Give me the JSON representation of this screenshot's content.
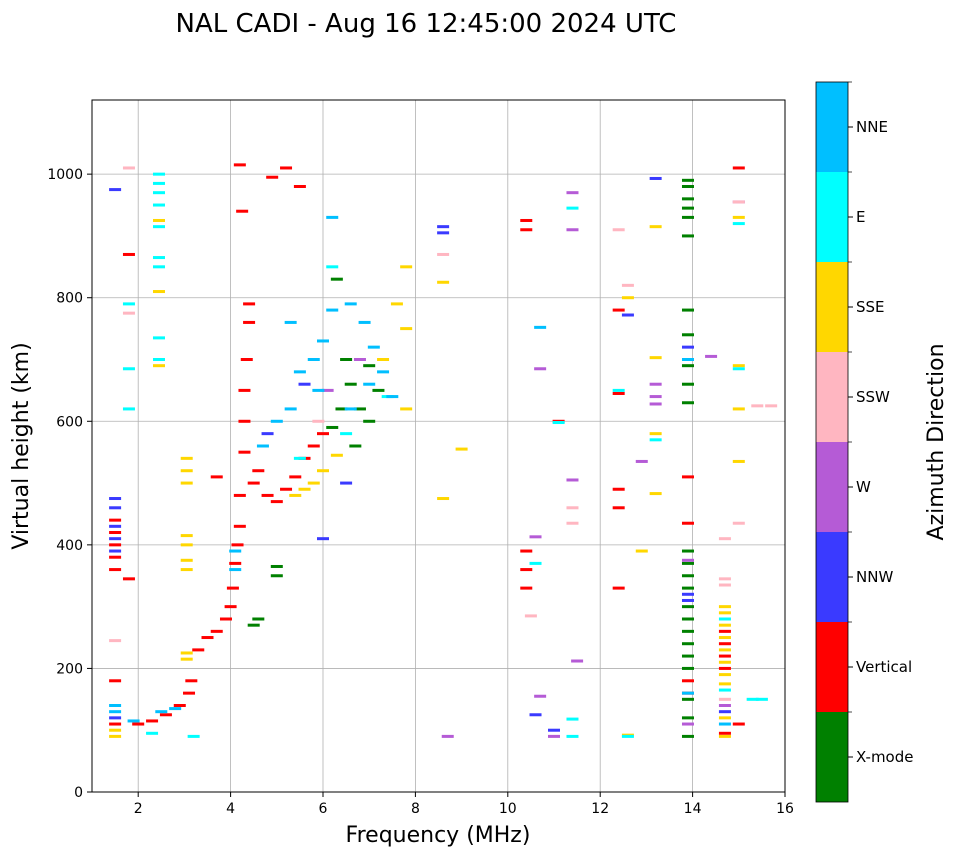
{
  "chart_data": {
    "type": "scatter",
    "title": "NAL CADI - Aug 16 12:45:00 2024 UTC",
    "xlabel": "Frequency (MHz)",
    "ylabel": "Virtual height (km)",
    "xlim": [
      1,
      16
    ],
    "ylim": [
      0,
      1120
    ],
    "xticks": [
      2,
      4,
      6,
      8,
      10,
      12,
      14,
      16
    ],
    "yticks": [
      0,
      200,
      400,
      600,
      800,
      1000
    ],
    "grid": true,
    "colorbar": {
      "title": "Azimuth Direction",
      "categories": [
        {
          "label": "X-mode",
          "color": "#008000"
        },
        {
          "label": "Vertical",
          "color": "#ff0000"
        },
        {
          "label": "NNW",
          "color": "#3a3aff"
        },
        {
          "label": "W",
          "color": "#b55bd6"
        },
        {
          "label": "SSW",
          "color": "#ffb6c1"
        },
        {
          "label": "SSE",
          "color": "#ffd700"
        },
        {
          "label": "E",
          "color": "#00ffff"
        },
        {
          "label": "NNE",
          "color": "#00bfff"
        }
      ]
    },
    "series": [
      {
        "name": "X-mode",
        "points": [
          [
            4.5,
            270
          ],
          [
            4.6,
            280
          ],
          [
            5.0,
            350
          ],
          [
            5.0,
            365
          ],
          [
            6.3,
            830
          ],
          [
            6.5,
            700
          ],
          [
            6.6,
            660
          ],
          [
            6.8,
            620
          ],
          [
            7.0,
            690
          ],
          [
            7.2,
            650
          ],
          [
            13.9,
            990
          ],
          [
            13.9,
            980
          ],
          [
            13.9,
            960
          ],
          [
            13.9,
            945
          ],
          [
            13.9,
            930
          ],
          [
            13.9,
            900
          ],
          [
            13.9,
            780
          ],
          [
            13.9,
            740
          ],
          [
            13.9,
            690
          ],
          [
            13.9,
            660
          ],
          [
            13.9,
            630
          ],
          [
            13.9,
            390
          ],
          [
            13.9,
            370
          ],
          [
            13.9,
            350
          ],
          [
            13.9,
            330
          ],
          [
            13.9,
            300
          ],
          [
            13.9,
            280
          ],
          [
            13.9,
            260
          ],
          [
            13.9,
            240
          ],
          [
            13.9,
            220
          ],
          [
            13.9,
            200
          ],
          [
            13.9,
            150
          ],
          [
            13.9,
            120
          ],
          [
            13.9,
            90
          ],
          [
            6.2,
            590
          ],
          [
            6.4,
            620
          ],
          [
            6.7,
            560
          ],
          [
            7.0,
            600
          ]
        ]
      },
      {
        "name": "Vertical",
        "points": [
          [
            1.5,
            440
          ],
          [
            1.5,
            420
          ],
          [
            1.5,
            400
          ],
          [
            1.5,
            380
          ],
          [
            1.5,
            360
          ],
          [
            1.5,
            180
          ],
          [
            1.5,
            110
          ],
          [
            2.0,
            110
          ],
          [
            2.3,
            115
          ],
          [
            2.6,
            125
          ],
          [
            2.9,
            140
          ],
          [
            3.1,
            160
          ],
          [
            3.15,
            180
          ],
          [
            3.3,
            230
          ],
          [
            3.5,
            250
          ],
          [
            3.7,
            260
          ],
          [
            3.9,
            280
          ],
          [
            4.0,
            300
          ],
          [
            4.05,
            330
          ],
          [
            4.1,
            370
          ],
          [
            4.15,
            400
          ],
          [
            4.2,
            430
          ],
          [
            4.2,
            480
          ],
          [
            4.3,
            550
          ],
          [
            4.3,
            600
          ],
          [
            4.3,
            650
          ],
          [
            4.35,
            700
          ],
          [
            4.4,
            760
          ],
          [
            4.4,
            790
          ],
          [
            4.5,
            500
          ],
          [
            4.6,
            520
          ],
          [
            4.8,
            480
          ],
          [
            5.0,
            470
          ],
          [
            5.2,
            490
          ],
          [
            5.4,
            510
          ],
          [
            5.6,
            540
          ],
          [
            5.8,
            560
          ],
          [
            6.0,
            580
          ],
          [
            4.2,
            1015
          ],
          [
            4.25,
            940
          ],
          [
            4.9,
            995
          ],
          [
            5.2,
            1010
          ],
          [
            5.5,
            980
          ],
          [
            10.4,
            910
          ],
          [
            10.4,
            925
          ],
          [
            10.4,
            390
          ],
          [
            10.4,
            360
          ],
          [
            10.4,
            330
          ],
          [
            11.1,
            600
          ],
          [
            12.4,
            780
          ],
          [
            12.4,
            645
          ],
          [
            12.4,
            490
          ],
          [
            12.4,
            460
          ],
          [
            12.4,
            330
          ],
          [
            13.9,
            510
          ],
          [
            13.9,
            435
          ],
          [
            13.9,
            180
          ],
          [
            13.9,
            160
          ],
          [
            14.7,
            260
          ],
          [
            14.7,
            240
          ],
          [
            14.7,
            220
          ],
          [
            14.7,
            200
          ],
          [
            14.7,
            95
          ],
          [
            15.0,
            1010
          ],
          [
            15.0,
            110
          ],
          [
            1.8,
            345
          ],
          [
            1.8,
            870
          ],
          [
            3.7,
            510
          ]
        ]
      },
      {
        "name": "NNW",
        "points": [
          [
            1.5,
            475
          ],
          [
            1.5,
            460
          ],
          [
            1.5,
            430
          ],
          [
            1.5,
            410
          ],
          [
            1.5,
            390
          ],
          [
            1.5,
            120
          ],
          [
            1.5,
            975
          ],
          [
            6.0,
            410
          ],
          [
            6.5,
            500
          ],
          [
            8.6,
            905
          ],
          [
            8.6,
            915
          ],
          [
            10.6,
            125
          ],
          [
            11.0,
            100
          ],
          [
            12.6,
            772
          ],
          [
            13.2,
            993
          ],
          [
            13.9,
            720
          ],
          [
            13.9,
            320
          ],
          [
            13.9,
            310
          ],
          [
            14.7,
            130
          ],
          [
            5.6,
            660
          ],
          [
            4.8,
            580
          ]
        ]
      },
      {
        "name": "W",
        "points": [
          [
            8.7,
            90
          ],
          [
            10.7,
            155
          ],
          [
            10.7,
            685
          ],
          [
            10.6,
            413
          ],
          [
            11.4,
            970
          ],
          [
            11.4,
            910
          ],
          [
            11.4,
            505
          ],
          [
            11.0,
            90
          ],
          [
            11.5,
            212
          ],
          [
            12.9,
            535
          ],
          [
            13.2,
            660
          ],
          [
            13.2,
            640
          ],
          [
            13.2,
            628
          ],
          [
            13.9,
            375
          ],
          [
            13.9,
            110
          ],
          [
            14.4,
            705
          ],
          [
            15.0,
            955
          ],
          [
            14.7,
            140
          ],
          [
            6.1,
            650
          ],
          [
            6.8,
            700
          ]
        ]
      },
      {
        "name": "SSW",
        "points": [
          [
            1.8,
            1010
          ],
          [
            1.8,
            775
          ],
          [
            1.5,
            245
          ],
          [
            8.6,
            870
          ],
          [
            10.5,
            285
          ],
          [
            11.4,
            435
          ],
          [
            11.4,
            460
          ],
          [
            12.4,
            910
          ],
          [
            12.6,
            820
          ],
          [
            14.7,
            410
          ],
          [
            14.7,
            345
          ],
          [
            14.7,
            335
          ],
          [
            15.0,
            435
          ],
          [
            15.0,
            955
          ],
          [
            15.4,
            625
          ],
          [
            15.7,
            625
          ],
          [
            14.7,
            150
          ],
          [
            5.9,
            600
          ]
        ]
      },
      {
        "name": "SSE",
        "points": [
          [
            1.5,
            100
          ],
          [
            1.5,
            90
          ],
          [
            3.05,
            540
          ],
          [
            3.05,
            520
          ],
          [
            3.05,
            500
          ],
          [
            3.05,
            415
          ],
          [
            3.05,
            400
          ],
          [
            3.05,
            375
          ],
          [
            3.05,
            360
          ],
          [
            3.05,
            215
          ],
          [
            3.05,
            225
          ],
          [
            2.45,
            810
          ],
          [
            2.45,
            690
          ],
          [
            2.45,
            925
          ],
          [
            5.4,
            480
          ],
          [
            5.6,
            490
          ],
          [
            5.8,
            500
          ],
          [
            6.0,
            520
          ],
          [
            6.3,
            545
          ],
          [
            7.8,
            850
          ],
          [
            7.8,
            750
          ],
          [
            7.8,
            620
          ],
          [
            8.6,
            825
          ],
          [
            8.6,
            475
          ],
          [
            9.0,
            555
          ],
          [
            12.6,
            800
          ],
          [
            12.6,
            92
          ],
          [
            12.9,
            390
          ],
          [
            13.2,
            703
          ],
          [
            13.2,
            580
          ],
          [
            13.2,
            483
          ],
          [
            13.2,
            915
          ],
          [
            14.7,
            300
          ],
          [
            14.7,
            290
          ],
          [
            14.7,
            270
          ],
          [
            14.7,
            250
          ],
          [
            14.7,
            230
          ],
          [
            14.7,
            210
          ],
          [
            14.7,
            190
          ],
          [
            14.7,
            175
          ],
          [
            14.7,
            120
          ],
          [
            14.7,
            90
          ],
          [
            15.0,
            930
          ],
          [
            15.0,
            690
          ],
          [
            15.0,
            620
          ],
          [
            15.0,
            535
          ],
          [
            7.6,
            790
          ],
          [
            7.3,
            700
          ]
        ]
      },
      {
        "name": "E",
        "points": [
          [
            2.45,
            1000
          ],
          [
            2.45,
            985
          ],
          [
            2.45,
            970
          ],
          [
            2.45,
            950
          ],
          [
            2.45,
            915
          ],
          [
            2.45,
            865
          ],
          [
            2.45,
            850
          ],
          [
            2.45,
            735
          ],
          [
            2.45,
            700
          ],
          [
            1.8,
            790
          ],
          [
            1.8,
            620
          ],
          [
            1.8,
            685
          ],
          [
            2.3,
            95
          ],
          [
            3.2,
            90
          ],
          [
            6.2,
            850
          ],
          [
            10.6,
            370
          ],
          [
            11.4,
            945
          ],
          [
            11.4,
            118
          ],
          [
            11.4,
            90
          ],
          [
            11.1,
            598
          ],
          [
            12.4,
            650
          ],
          [
            12.6,
            90
          ],
          [
            13.2,
            570
          ],
          [
            14.7,
            280
          ],
          [
            15.0,
            685
          ],
          [
            15.0,
            920
          ],
          [
            15.3,
            150
          ],
          [
            15.5,
            150
          ],
          [
            14.7,
            165
          ],
          [
            7.4,
            640
          ],
          [
            5.5,
            540
          ],
          [
            6.5,
            580
          ]
        ]
      },
      {
        "name": "NNE",
        "points": [
          [
            1.5,
            130
          ],
          [
            1.5,
            140
          ],
          [
            1.9,
            115
          ],
          [
            2.5,
            130
          ],
          [
            2.8,
            135
          ],
          [
            4.1,
            360
          ],
          [
            4.1,
            390
          ],
          [
            4.7,
            560
          ],
          [
            5.0,
            600
          ],
          [
            5.3,
            620
          ],
          [
            5.5,
            680
          ],
          [
            5.8,
            700
          ],
          [
            6.0,
            730
          ],
          [
            6.2,
            780
          ],
          [
            6.6,
            790
          ],
          [
            6.9,
            760
          ],
          [
            7.1,
            720
          ],
          [
            7.3,
            680
          ],
          [
            7.5,
            640
          ],
          [
            6.2,
            930
          ],
          [
            10.7,
            752
          ],
          [
            13.9,
            700
          ],
          [
            13.9,
            160
          ],
          [
            14.7,
            110
          ],
          [
            5.3,
            760
          ],
          [
            5.9,
            650
          ],
          [
            6.6,
            620
          ],
          [
            7.0,
            660
          ]
        ]
      }
    ]
  }
}
